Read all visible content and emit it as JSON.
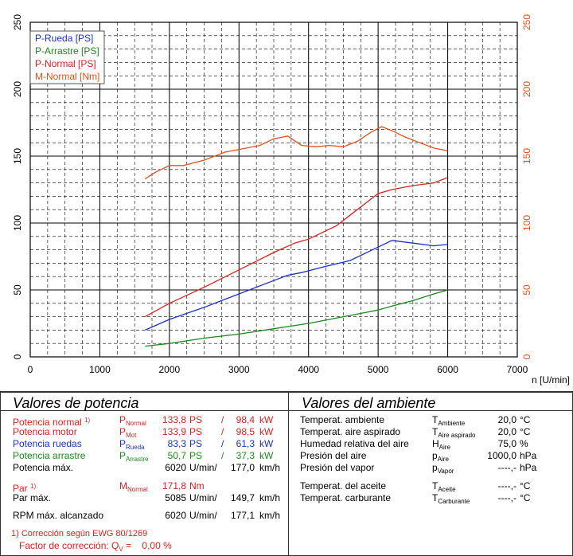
{
  "chart_data": {
    "type": "line",
    "x_ticks": [
      "0",
      "1000",
      "2000",
      "3000",
      "4000",
      "5000",
      "6000",
      "7000"
    ],
    "xlabel": "n [U/min]",
    "y_left_ticks": [
      "0",
      "50",
      "100",
      "150",
      "200",
      "250"
    ],
    "y_right_ticks": [
      "0",
      "50",
      "100",
      "150",
      "200",
      "250"
    ],
    "xlim": [
      0,
      7000
    ],
    "ylim": [
      0,
      250
    ],
    "grid": true,
    "legend_position": "top-left",
    "colors": {
      "blue": "#1a2fcc",
      "green": "#1a8a1a",
      "red": "#e0201c",
      "orange": "#e8501c",
      "rightAxis": "#e8501c"
    },
    "series": [
      {
        "name": "P-Rueda [PS]",
        "color": "#1a2fcc",
        "x": [
          1650,
          2000,
          2500,
          3000,
          3500,
          3700,
          3900,
          4200,
          4600,
          5000,
          5200,
          5500,
          5800,
          6000
        ],
        "y": [
          20,
          28,
          37,
          47,
          57,
          61,
          63,
          67,
          72,
          82,
          87,
          85,
          83,
          84
        ]
      },
      {
        "name": "P-Arrastre [PS]",
        "color": "#1a8a1a",
        "x": [
          1650,
          2000,
          2500,
          3000,
          3500,
          4000,
          4500,
          4800,
          5000,
          5200,
          5500,
          5800,
          6000
        ],
        "y": [
          8,
          10,
          14,
          17,
          21,
          25,
          30,
          33,
          35,
          38,
          42,
          47,
          50
        ]
      },
      {
        "name": "P-Normal [PS]",
        "color": "#e0201c",
        "x": [
          1650,
          2000,
          2500,
          3000,
          3500,
          3800,
          4000,
          4400,
          4700,
          5000,
          5200,
          5500,
          5800,
          6000
        ],
        "y": [
          30,
          40,
          52,
          65,
          78,
          85,
          88,
          98,
          110,
          122,
          125,
          128,
          130,
          134
        ]
      },
      {
        "name": "M-Normal [Nm]",
        "color": "#e8501c",
        "x": [
          1650,
          1800,
          2000,
          2200,
          2500,
          2800,
          3000,
          3300,
          3500,
          3700,
          3900,
          4100,
          4300,
          4500,
          4700,
          4900,
          5050,
          5200,
          5400,
          5600,
          5800,
          6000
        ],
        "y": [
          133,
          138,
          143,
          143,
          147,
          153,
          155,
          158,
          163,
          165,
          158,
          157,
          158,
          157,
          161,
          168,
          172,
          169,
          164,
          160,
          156,
          154
        ]
      }
    ]
  },
  "power_panel": {
    "title": "Valores de potencia",
    "rows": [
      {
        "label": "Potencia normal",
        "sup": "1)",
        "sym": "P",
        "sub": "Normal",
        "v1": "133,8",
        "u1": "PS",
        "sep": "/",
        "v2": "98,4",
        "u2": "kW",
        "color": "#e0201c"
      },
      {
        "label": "Potencia motor",
        "sup": "",
        "sym": "P",
        "sub": "Mot",
        "v1": "133,9",
        "u1": "PS",
        "sep": "/",
        "v2": "98,5",
        "u2": "kW",
        "color": "#e0201c"
      },
      {
        "label": "Potencia ruedas",
        "sup": "",
        "sym": "P",
        "sub": "Rueda",
        "v1": "83,3",
        "u1": "PS",
        "sep": "/",
        "v2": "61,3",
        "u2": "kW",
        "color": "#1a2fcc"
      },
      {
        "label": "Potencia arrastre",
        "sup": "",
        "sym": "P",
        "sub": "Arrastre",
        "v1": "50,7",
        "u1": "PS",
        "sep": "/",
        "v2": "37,3",
        "u2": "kW",
        "color": "#1a8a1a"
      },
      {
        "label": "Potencia máx.",
        "sup": "",
        "sym": "",
        "sub": "",
        "v1": "6020",
        "u1": "U/min/",
        "sep": "",
        "v2": "177,0",
        "u2": "km/h",
        "color": "#000000"
      }
    ],
    "par_rows": [
      {
        "label": "Par",
        "sup": "1)",
        "sym": "M",
        "sub": "Normal",
        "v1": "171,8",
        "u1": "Nm",
        "sep": "",
        "v2": "",
        "u2": "",
        "color": "#e0201c"
      },
      {
        "label": "Par máx.",
        "sup": "",
        "sym": "",
        "sub": "",
        "v1": "5085",
        "u1": "U/min/",
        "sep": "",
        "v2": "149,7",
        "u2": "km/h",
        "color": "#000000"
      }
    ],
    "rpm_row": {
      "label": "RPM máx. alcanzado",
      "v1": "6020",
      "u1": "U/min/",
      "v2": "177,1",
      "u2": "km/h"
    },
    "footnote1": "1) Corrección según EWG 80/1269",
    "footnote2_label": "Factor de corrección: Q",
    "footnote2_sub": "V",
    "footnote2_value": "=    0,00 %"
  },
  "ambient_panel": {
    "title": "Valores del ambiente",
    "rows": [
      {
        "label": "Temperat. ambiente",
        "sym": "T",
        "sub": "Ambiente",
        "val": "20,0",
        "unit": "°C"
      },
      {
        "label": "Temperat. aire aspirado",
        "sym": "T",
        "sub": "Aire aspirado",
        "val": "20,0",
        "unit": "°C"
      },
      {
        "label": "Humedad relativa del aire",
        "sym": "H",
        "sub": "Aire",
        "val": "75,0",
        "unit": "%"
      },
      {
        "label": "Presión del aire",
        "sym": "p",
        "sub": "Aire",
        "val": "1000,0",
        "unit": "hPa"
      },
      {
        "label": "Presión del vapor",
        "sym": "p",
        "sub": "Vapor",
        "val": "----,-",
        "unit": "hPa"
      }
    ],
    "rows2": [
      {
        "label": "Temperat. del aceite",
        "sym": "T",
        "sub": "Aceite",
        "val": "----,-",
        "unit": "°C"
      },
      {
        "label": "Temperat. carburante",
        "sym": "T",
        "sub": "Carburante",
        "val": "----,-",
        "unit": "°C"
      }
    ]
  }
}
